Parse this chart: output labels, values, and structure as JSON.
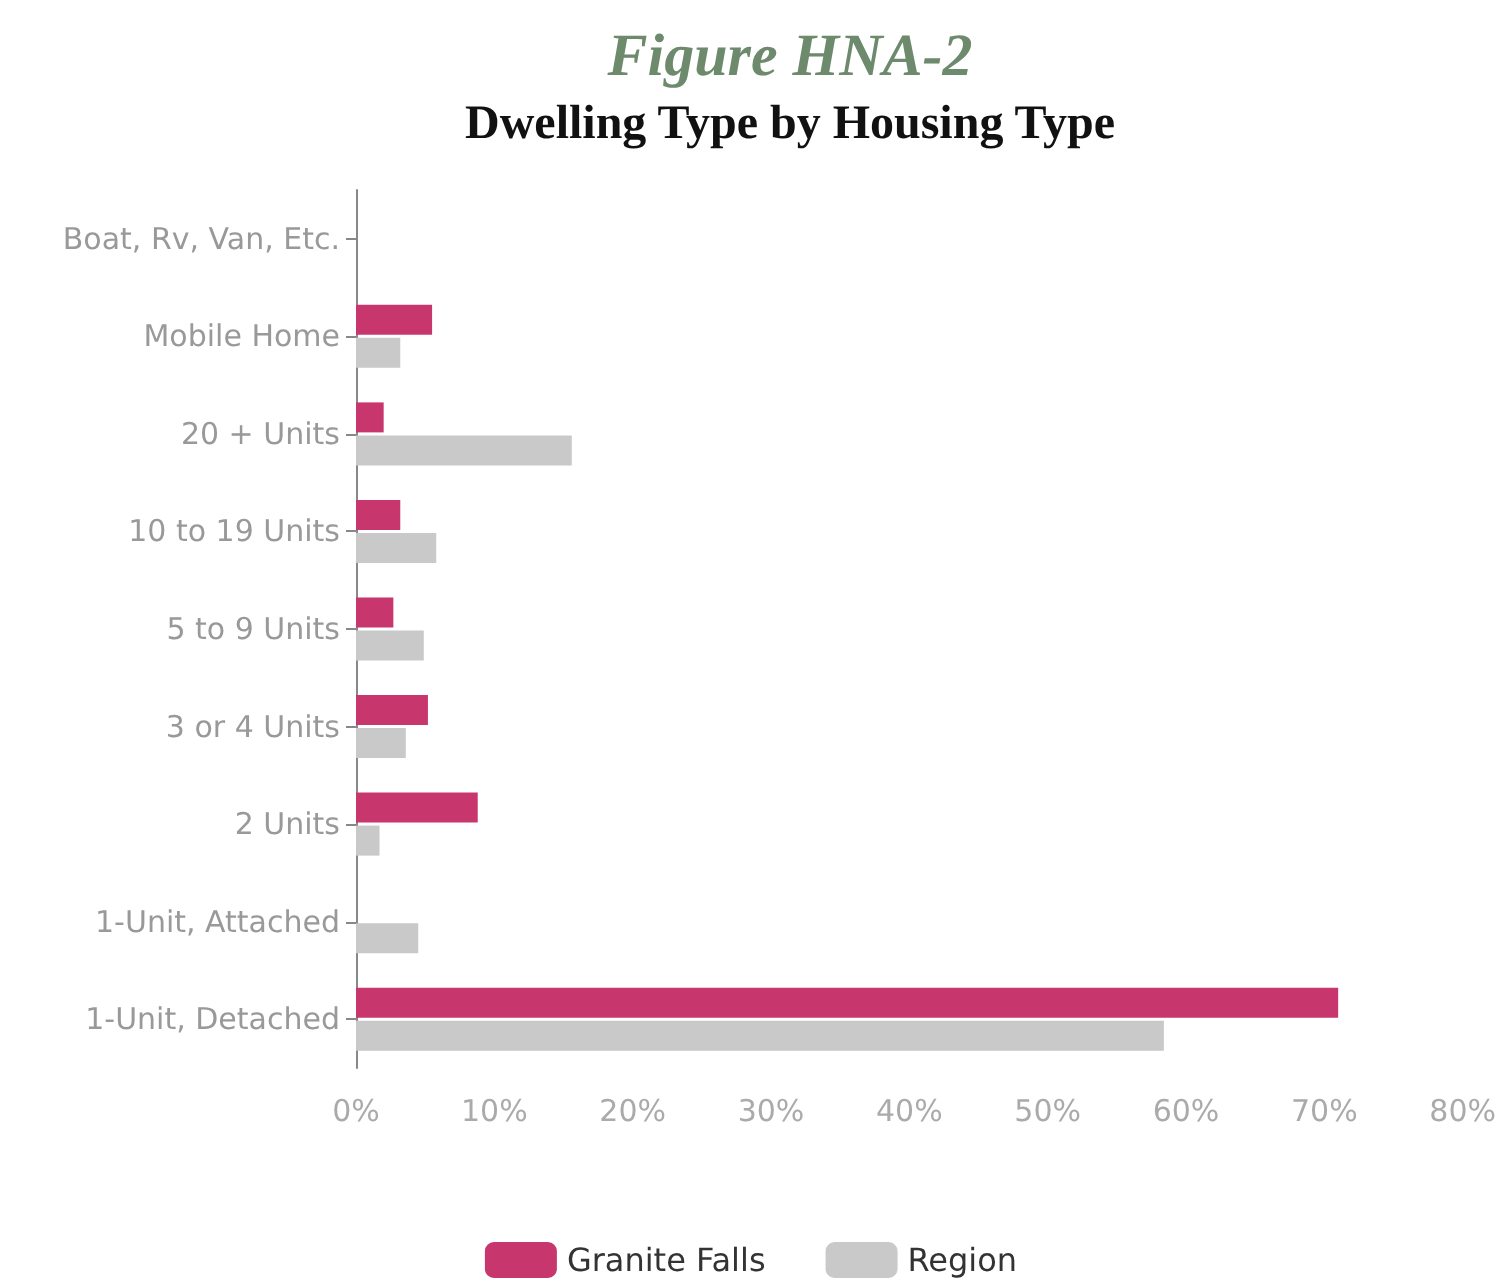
{
  "chart_data": {
    "type": "bar",
    "orientation": "horizontal",
    "title": "Figure HNA-2",
    "subtitle": "Dwelling Type by Housing Type",
    "categories": [
      "Boat, Rv, Van, Etc.",
      "Mobile Home",
      "20 + Units",
      "10 to 19 Units",
      "5 to 9 Units",
      "3 or 4 Units",
      "2 Units",
      "1-Unit, Attached",
      "1-Unit, Detached"
    ],
    "series": [
      {
        "name": "Granite Falls",
        "color": "#c8366e",
        "values": [
          0,
          5.5,
          2.0,
          3.2,
          2.7,
          5.2,
          8.8,
          0,
          71.0
        ]
      },
      {
        "name": "Region",
        "color": "#c9c9c9",
        "values": [
          0,
          3.2,
          15.6,
          5.8,
          4.9,
          3.6,
          1.7,
          4.5,
          58.4
        ]
      }
    ],
    "xlim": [
      0,
      80
    ],
    "xticks": [
      {
        "value": 0,
        "label": "0%"
      },
      {
        "value": 10,
        "label": "10%"
      },
      {
        "value": 20,
        "label": "20%"
      },
      {
        "value": 30,
        "label": "30%"
      },
      {
        "value": 40,
        "label": "40%"
      },
      {
        "value": 50,
        "label": "50%"
      },
      {
        "value": 60,
        "label": "60%"
      },
      {
        "value": 70,
        "label": "70%"
      },
      {
        "value": 80,
        "label": "80%"
      }
    ],
    "grid": false,
    "legend": "bottom"
  }
}
